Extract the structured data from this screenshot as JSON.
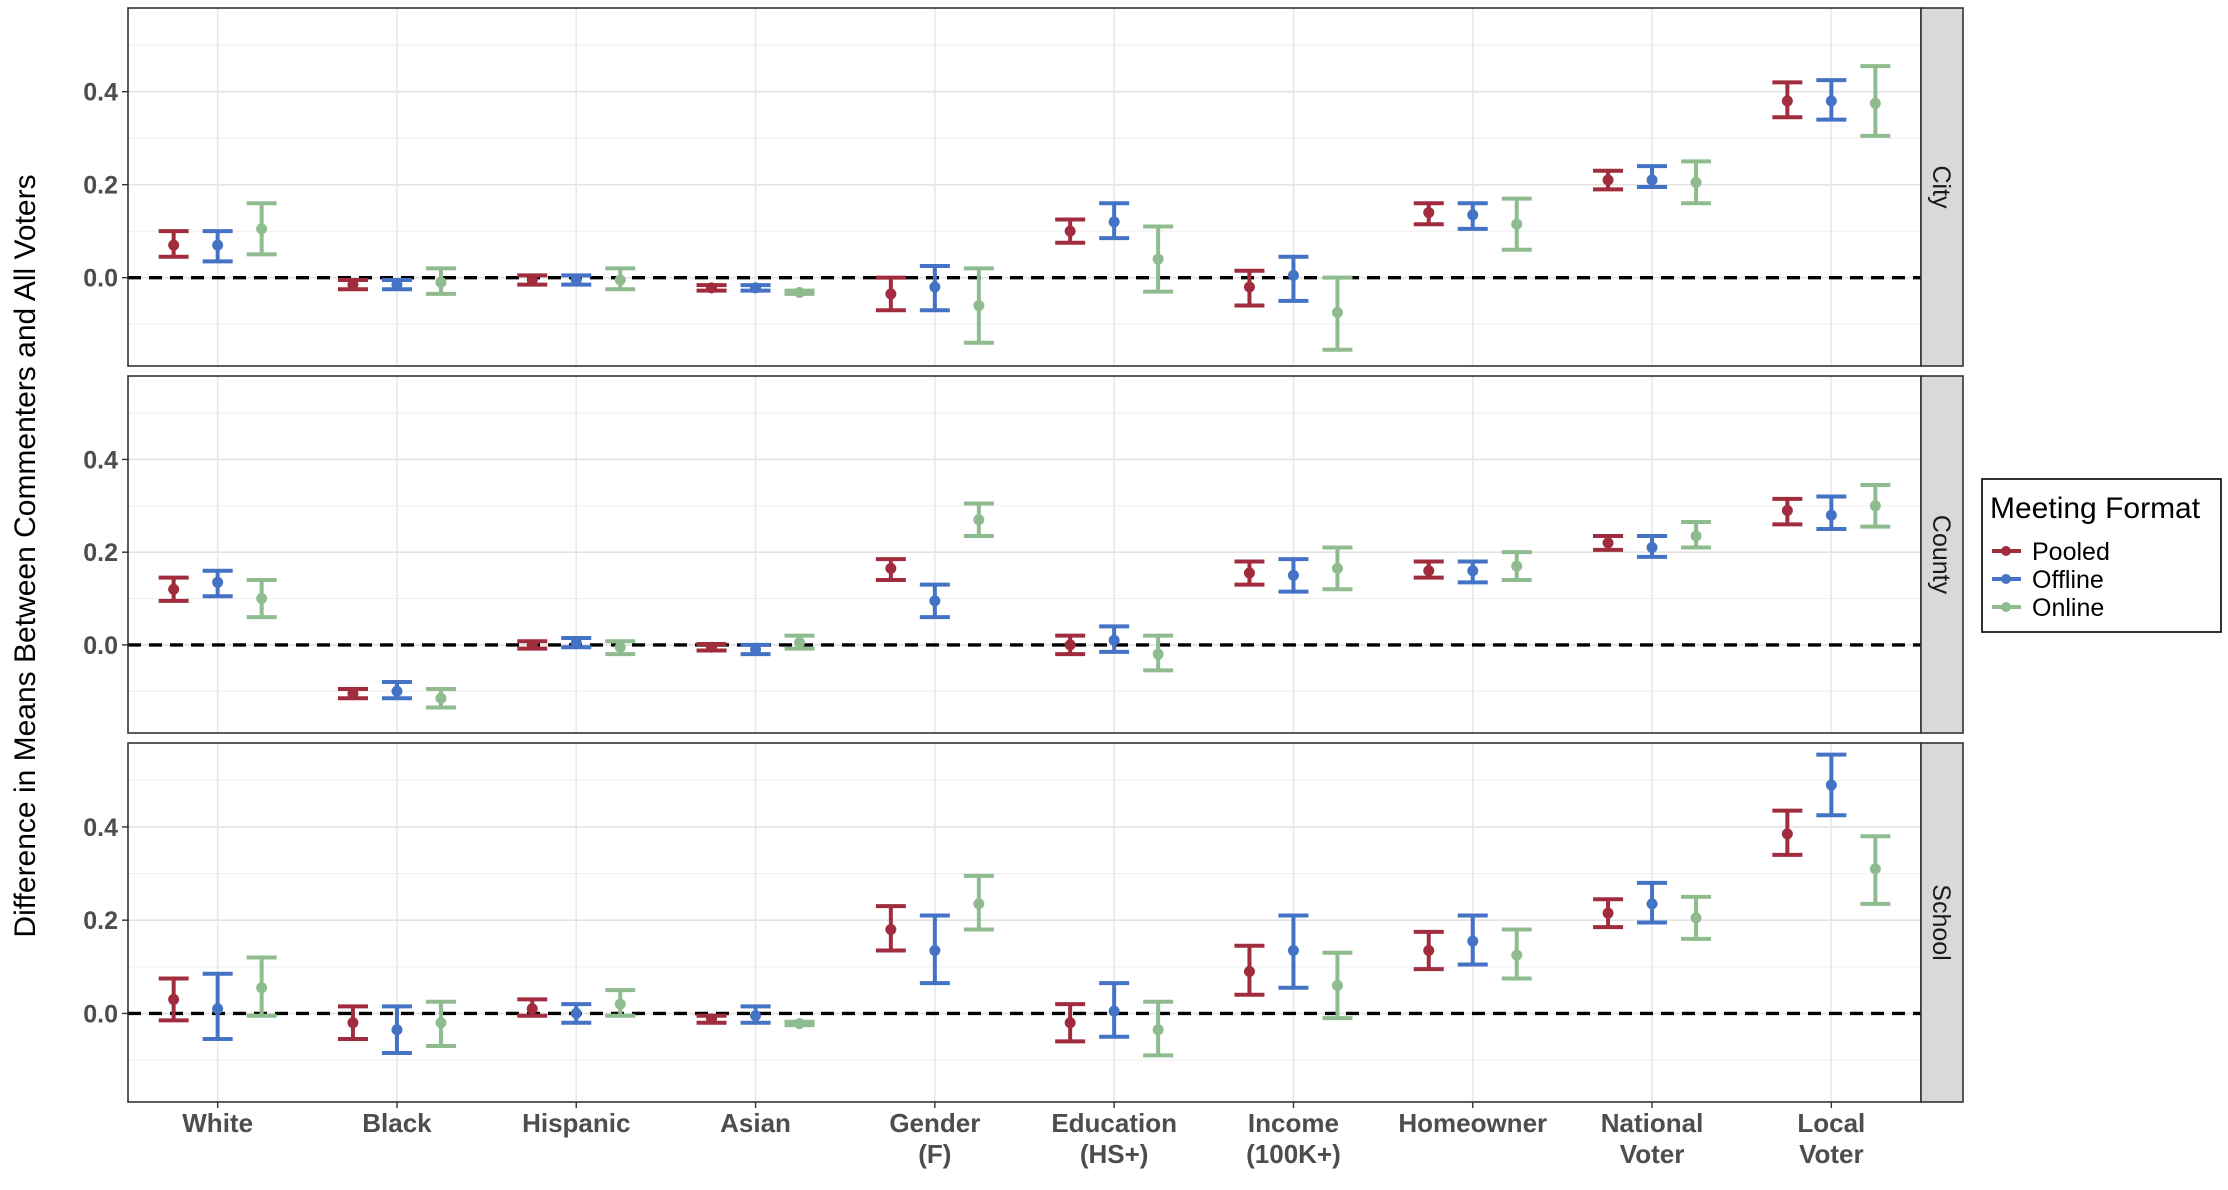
{
  "chart_data": {
    "type": "errorbar",
    "ylabel": "Difference in Means Between Commenters and All Voters",
    "xlabel": "",
    "categories": [
      [
        "White"
      ],
      [
        "Black"
      ],
      [
        "Hispanic"
      ],
      [
        "Asian"
      ],
      [
        "Gender",
        "(F)"
      ],
      [
        "Education",
        "(HS+)"
      ],
      [
        "Income",
        "(100K+)"
      ],
      [
        "Homeowner"
      ],
      [
        "National",
        "Voter"
      ],
      [
        "Local",
        "Voter"
      ]
    ],
    "yticks": [
      "0.0",
      "0.2",
      "0.4"
    ],
    "ylim": [
      -0.19,
      0.58
    ],
    "reference_line": 0.0,
    "grid": true,
    "legend": {
      "title": "Meeting Format",
      "position": "right",
      "entries": [
        "Pooled",
        "Offline",
        "Online"
      ]
    },
    "colors": {
      "Pooled": "#a02c3d",
      "Offline": "#4472c4",
      "Online": "#8fbc8f"
    },
    "facets": [
      {
        "label": "City",
        "series": [
          {
            "name": "Pooled",
            "mean": [
              0.07,
              -0.015,
              -0.005,
              -0.022,
              -0.035,
              0.1,
              -0.02,
              0.14,
              0.21,
              0.38
            ],
            "lower": [
              0.045,
              -0.025,
              -0.015,
              -0.028,
              -0.07,
              0.075,
              -0.06,
              0.115,
              0.19,
              0.345
            ],
            "upper": [
              0.1,
              -0.005,
              0.005,
              -0.016,
              0.0,
              0.125,
              0.015,
              0.16,
              0.23,
              0.42
            ]
          },
          {
            "name": "Offline",
            "mean": [
              0.07,
              -0.015,
              -0.005,
              -0.022,
              -0.02,
              0.12,
              0.005,
              0.135,
              0.21,
              0.38
            ],
            "lower": [
              0.035,
              -0.025,
              -0.015,
              -0.028,
              -0.07,
              0.085,
              -0.05,
              0.105,
              0.195,
              0.34
            ],
            "upper": [
              0.1,
              -0.005,
              0.005,
              -0.016,
              0.025,
              0.16,
              0.045,
              0.16,
              0.24,
              0.425
            ]
          },
          {
            "name": "Online",
            "mean": [
              0.105,
              -0.01,
              -0.005,
              -0.032,
              -0.06,
              0.04,
              -0.075,
              0.115,
              0.205,
              0.375
            ],
            "lower": [
              0.05,
              -0.035,
              -0.025,
              -0.035,
              -0.14,
              -0.03,
              -0.155,
              0.06,
              0.16,
              0.305
            ],
            "upper": [
              0.16,
              0.02,
              0.02,
              -0.028,
              0.02,
              0.11,
              0.0,
              0.17,
              0.25,
              0.455
            ]
          }
        ]
      },
      {
        "label": "County",
        "series": [
          {
            "name": "Pooled",
            "mean": [
              0.12,
              -0.105,
              0.0,
              -0.005,
              0.165,
              0.0,
              0.155,
              0.16,
              0.22,
              0.29
            ],
            "lower": [
              0.095,
              -0.115,
              -0.008,
              -0.012,
              0.14,
              -0.02,
              0.13,
              0.145,
              0.205,
              0.26
            ],
            "upper": [
              0.145,
              -0.095,
              0.008,
              0.002,
              0.185,
              0.02,
              0.18,
              0.18,
              0.235,
              0.315
            ]
          },
          {
            "name": "Offline",
            "mean": [
              0.135,
              -0.1,
              0.005,
              -0.01,
              0.095,
              0.01,
              0.15,
              0.16,
              0.21,
              0.28
            ],
            "lower": [
              0.105,
              -0.115,
              -0.005,
              -0.02,
              0.06,
              -0.015,
              0.115,
              0.135,
              0.19,
              0.25
            ],
            "upper": [
              0.16,
              -0.08,
              0.015,
              0.0,
              0.13,
              0.04,
              0.185,
              0.18,
              0.235,
              0.32
            ]
          },
          {
            "name": "Online",
            "mean": [
              0.1,
              -0.115,
              -0.005,
              0.005,
              0.27,
              -0.02,
              0.165,
              0.17,
              0.235,
              0.3
            ],
            "lower": [
              0.06,
              -0.135,
              -0.02,
              -0.008,
              0.235,
              -0.055,
              0.12,
              0.14,
              0.21,
              0.255
            ],
            "upper": [
              0.14,
              -0.095,
              0.008,
              0.02,
              0.305,
              0.02,
              0.21,
              0.2,
              0.265,
              0.345
            ]
          }
        ]
      },
      {
        "label": "School",
        "series": [
          {
            "name": "Pooled",
            "mean": [
              0.03,
              -0.02,
              0.01,
              -0.012,
              0.18,
              -0.02,
              0.09,
              0.135,
              0.215,
              0.385
            ],
            "lower": [
              -0.015,
              -0.055,
              -0.005,
              -0.02,
              0.135,
              -0.06,
              0.04,
              0.095,
              0.185,
              0.34
            ],
            "upper": [
              0.075,
              0.015,
              0.03,
              -0.005,
              0.23,
              0.02,
              0.145,
              0.175,
              0.245,
              0.435
            ]
          },
          {
            "name": "Offline",
            "mean": [
              0.01,
              -0.035,
              0.0,
              -0.005,
              0.135,
              0.005,
              0.135,
              0.155,
              0.235,
              0.49
            ],
            "lower": [
              -0.055,
              -0.085,
              -0.02,
              -0.02,
              0.065,
              -0.05,
              0.055,
              0.105,
              0.195,
              0.425
            ],
            "upper": [
              0.085,
              0.015,
              0.02,
              0.015,
              0.21,
              0.065,
              0.21,
              0.21,
              0.28,
              0.555
            ]
          },
          {
            "name": "Online",
            "mean": [
              0.055,
              -0.02,
              0.02,
              -0.022,
              0.235,
              -0.035,
              0.06,
              0.125,
              0.205,
              0.31
            ],
            "lower": [
              -0.005,
              -0.07,
              -0.005,
              -0.025,
              0.18,
              -0.09,
              -0.01,
              0.075,
              0.16,
              0.235
            ],
            "upper": [
              0.12,
              0.025,
              0.05,
              -0.018,
              0.295,
              0.025,
              0.13,
              0.18,
              0.25,
              0.38
            ]
          }
        ]
      }
    ]
  }
}
